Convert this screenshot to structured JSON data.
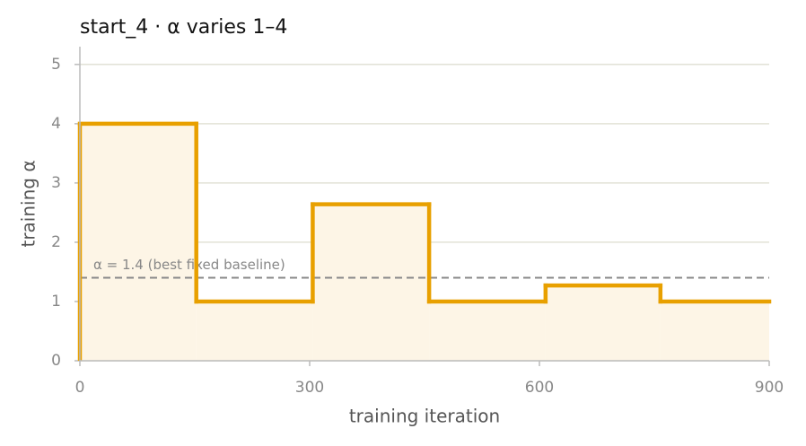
{
  "chart_data": {
    "type": "step",
    "title": "start_4   ·   α varies 1–4",
    "xlabel": "training iteration",
    "ylabel": "training α",
    "x": [
      0,
      152,
      304,
      456,
      608,
      758
    ],
    "series": [
      {
        "name": "training α",
        "color": "#e8a000",
        "values": [
          4,
          1,
          2.64,
          1,
          1.27,
          1
        ]
      }
    ],
    "xlim": [
      0,
      900
    ],
    "xticks": [
      0,
      300,
      600,
      900
    ],
    "ylim": [
      0,
      5.3
    ],
    "yticks": [
      0,
      1,
      2,
      3,
      4,
      5
    ],
    "grid": true,
    "reference_lines": [
      {
        "value": 1.4,
        "label": "α = 1.4 (best fixed baseline)"
      }
    ]
  }
}
